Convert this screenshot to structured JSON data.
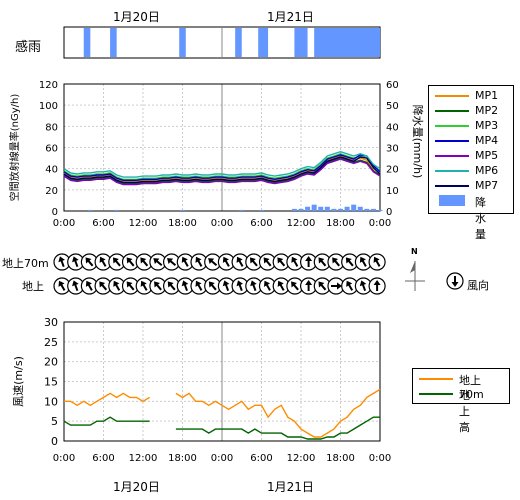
{
  "dates": [
    "1月20日",
    "1月21日"
  ],
  "rain_sense_label": "感雨",
  "colors": {
    "MP1": "#f08c00",
    "MP2": "#006400",
    "MP3": "#32cd32",
    "MP4": "#0000c8",
    "MP5": "#8000c0",
    "MP6": "#20b2aa",
    "MP7": "#000060",
    "rain": "#6496ff",
    "wind70": "#ff8c00",
    "windGround": "#006400"
  },
  "legend_top": {
    "items": [
      {
        "name": "MP1",
        "kind": "line"
      },
      {
        "name": "MP2",
        "kind": "line"
      },
      {
        "name": "MP3",
        "kind": "line"
      },
      {
        "name": "MP4",
        "kind": "line"
      },
      {
        "name": "MP5",
        "kind": "line"
      },
      {
        "name": "MP6",
        "kind": "line"
      },
      {
        "name": "MP7",
        "kind": "line"
      },
      {
        "name": "降水量",
        "kind": "bar"
      }
    ]
  },
  "legend_wind": {
    "items": [
      {
        "name": "地上70m",
        "kind": "line"
      },
      {
        "name": "地上高",
        "kind": "line"
      }
    ]
  },
  "wind_dir": {
    "row_labels": [
      "地上70m",
      "地上"
    ],
    "compass_label": "N",
    "legend_label": "風向"
  },
  "chart_data": [
    {
      "type": "bar",
      "title": "感雨",
      "xlim_hours": [
        0,
        48
      ],
      "rain_sense_periods_hours": [
        [
          3,
          4
        ],
        [
          7,
          8
        ],
        [
          17.5,
          18.5
        ],
        [
          26,
          27
        ],
        [
          29.5,
          31
        ],
        [
          35,
          37
        ],
        [
          38,
          48
        ]
      ]
    },
    {
      "type": "line",
      "ylabel": "空間放射線量率(nGy/h)",
      "y2label": "降水量(mm/h)",
      "ylim": [
        0,
        120
      ],
      "y2lim": [
        0,
        60
      ],
      "yticks": [
        0,
        20,
        40,
        60,
        80,
        100,
        120
      ],
      "y2ticks": [
        0,
        10,
        20,
        30,
        40,
        50,
        60
      ],
      "xticks": [
        "0:00",
        "6:00",
        "12:00",
        "18:00",
        "0:00",
        "6:00",
        "12:00",
        "18:00",
        "0:00"
      ],
      "x_hours": [
        0,
        1,
        2,
        3,
        4,
        5,
        6,
        7,
        8,
        9,
        10,
        11,
        12,
        13,
        14,
        15,
        16,
        17,
        18,
        19,
        20,
        21,
        22,
        23,
        24,
        25,
        26,
        27,
        28,
        29,
        30,
        31,
        32,
        33,
        34,
        35,
        36,
        37,
        38,
        39,
        40,
        41,
        42,
        43,
        44,
        45,
        46,
        47,
        48
      ],
      "series": [
        {
          "name": "MP1",
          "values": [
            36,
            32,
            31,
            32,
            32,
            33,
            33,
            34,
            30,
            28,
            28,
            28,
            29,
            29,
            29,
            30,
            30,
            31,
            30,
            30,
            31,
            30,
            30,
            31,
            31,
            30,
            30,
            31,
            31,
            31,
            32,
            30,
            29,
            30,
            31,
            33,
            36,
            38,
            37,
            42,
            48,
            50,
            52,
            50,
            48,
            50,
            48,
            40,
            36
          ]
        },
        {
          "name": "MP2",
          "values": [
            34,
            30,
            29,
            30,
            30,
            31,
            31,
            32,
            28,
            26,
            26,
            26,
            27,
            27,
            27,
            28,
            28,
            29,
            28,
            28,
            29,
            28,
            28,
            29,
            29,
            28,
            28,
            29,
            29,
            29,
            30,
            28,
            27,
            28,
            29,
            31,
            34,
            36,
            35,
            40,
            46,
            48,
            50,
            48,
            46,
            48,
            46,
            38,
            34
          ]
        },
        {
          "name": "MP3",
          "values": [
            38,
            34,
            33,
            34,
            34,
            35,
            35,
            36,
            32,
            30,
            30,
            30,
            31,
            31,
            31,
            32,
            32,
            33,
            32,
            32,
            33,
            32,
            32,
            33,
            33,
            32,
            32,
            33,
            33,
            33,
            34,
            32,
            31,
            32,
            33,
            35,
            38,
            40,
            39,
            44,
            50,
            52,
            54,
            52,
            50,
            52,
            50,
            42,
            38
          ]
        },
        {
          "name": "MP4",
          "values": [
            37,
            33,
            32,
            33,
            33,
            34,
            34,
            35,
            31,
            29,
            29,
            29,
            30,
            30,
            30,
            31,
            31,
            32,
            31,
            31,
            32,
            31,
            31,
            32,
            32,
            31,
            31,
            32,
            32,
            32,
            33,
            31,
            30,
            31,
            32,
            34,
            37,
            39,
            38,
            43,
            49,
            51,
            53,
            51,
            49,
            53,
            52,
            43,
            37
          ]
        },
        {
          "name": "MP5",
          "values": [
            33,
            29,
            28,
            29,
            29,
            30,
            30,
            31,
            27,
            25,
            25,
            25,
            26,
            26,
            26,
            27,
            27,
            28,
            27,
            27,
            28,
            27,
            27,
            28,
            28,
            27,
            27,
            28,
            28,
            28,
            29,
            27,
            26,
            27,
            28,
            30,
            33,
            35,
            34,
            39,
            45,
            47,
            49,
            47,
            45,
            47,
            45,
            37,
            33
          ]
        },
        {
          "name": "MP6",
          "values": [
            40,
            36,
            35,
            36,
            36,
            37,
            37,
            38,
            34,
            32,
            32,
            32,
            33,
            33,
            33,
            34,
            34,
            35,
            34,
            34,
            35,
            34,
            34,
            35,
            35,
            34,
            34,
            35,
            35,
            35,
            36,
            34,
            33,
            34,
            35,
            37,
            40,
            42,
            41,
            46,
            52,
            54,
            56,
            54,
            52,
            54,
            52,
            44,
            40
          ]
        },
        {
          "name": "MP7",
          "values": [
            35,
            31,
            30,
            31,
            31,
            32,
            32,
            33,
            29,
            27,
            27,
            27,
            28,
            28,
            28,
            29,
            29,
            30,
            29,
            29,
            30,
            29,
            29,
            30,
            30,
            29,
            29,
            30,
            30,
            30,
            31,
            29,
            28,
            29,
            30,
            32,
            35,
            37,
            36,
            41,
            47,
            49,
            51,
            49,
            47,
            51,
            50,
            41,
            35
          ]
        },
        {
          "name": "降水量",
          "axis": "y2",
          "values": [
            0,
            0,
            0,
            0,
            0.5,
            0,
            0,
            0,
            0.5,
            0,
            0,
            0,
            0,
            0,
            0,
            0,
            0,
            0,
            0.5,
            0,
            0,
            0,
            0,
            0,
            0,
            0,
            0,
            0.5,
            0,
            0,
            0.5,
            0,
            0,
            0,
            0,
            1,
            1,
            2,
            3,
            2,
            2,
            1,
            1,
            2,
            3,
            2,
            1,
            1,
            0.5
          ]
        }
      ]
    },
    {
      "type": "line",
      "ylabel": "風速(m/s)",
      "ylim": [
        0,
        30
      ],
      "yticks": [
        0,
        5,
        10,
        15,
        20,
        25,
        30
      ],
      "xticks": [
        "0:00",
        "6:00",
        "12:00",
        "18:00",
        "0:00",
        "6:00",
        "12:00",
        "18:00",
        "0:00"
      ],
      "x_hours": [
        0,
        1,
        2,
        3,
        4,
        5,
        6,
        7,
        8,
        9,
        10,
        11,
        12,
        13,
        14,
        15,
        16,
        17,
        18,
        19,
        20,
        21,
        22,
        23,
        24,
        25,
        26,
        27,
        28,
        29,
        30,
        31,
        32,
        33,
        34,
        35,
        36,
        37,
        38,
        39,
        40,
        41,
        42,
        43,
        44,
        45,
        46,
        47,
        48
      ],
      "series": [
        {
          "name": "地上70m",
          "values": [
            10,
            10,
            9,
            10,
            9,
            10,
            11,
            12,
            11,
            12,
            11,
            11,
            10,
            11,
            null,
            null,
            null,
            12,
            11,
            12,
            10,
            10,
            9,
            10,
            9,
            8,
            9,
            10,
            8,
            9,
            9,
            6,
            8,
            9,
            6,
            5,
            3,
            2,
            1,
            1,
            2,
            3,
            5,
            6,
            8,
            9,
            11,
            12,
            13
          ]
        },
        {
          "name": "地上高",
          "values": [
            5,
            4,
            4,
            4,
            4,
            5,
            5,
            6,
            5,
            5,
            5,
            5,
            5,
            5,
            null,
            null,
            null,
            3,
            3,
            3,
            3,
            3,
            2,
            3,
            3,
            3,
            3,
            3,
            2,
            3,
            2,
            2,
            2,
            2,
            1,
            1,
            1,
            0.5,
            0.5,
            0.5,
            1,
            1,
            2,
            2,
            3,
            4,
            5,
            6,
            6
          ]
        }
      ]
    }
  ]
}
